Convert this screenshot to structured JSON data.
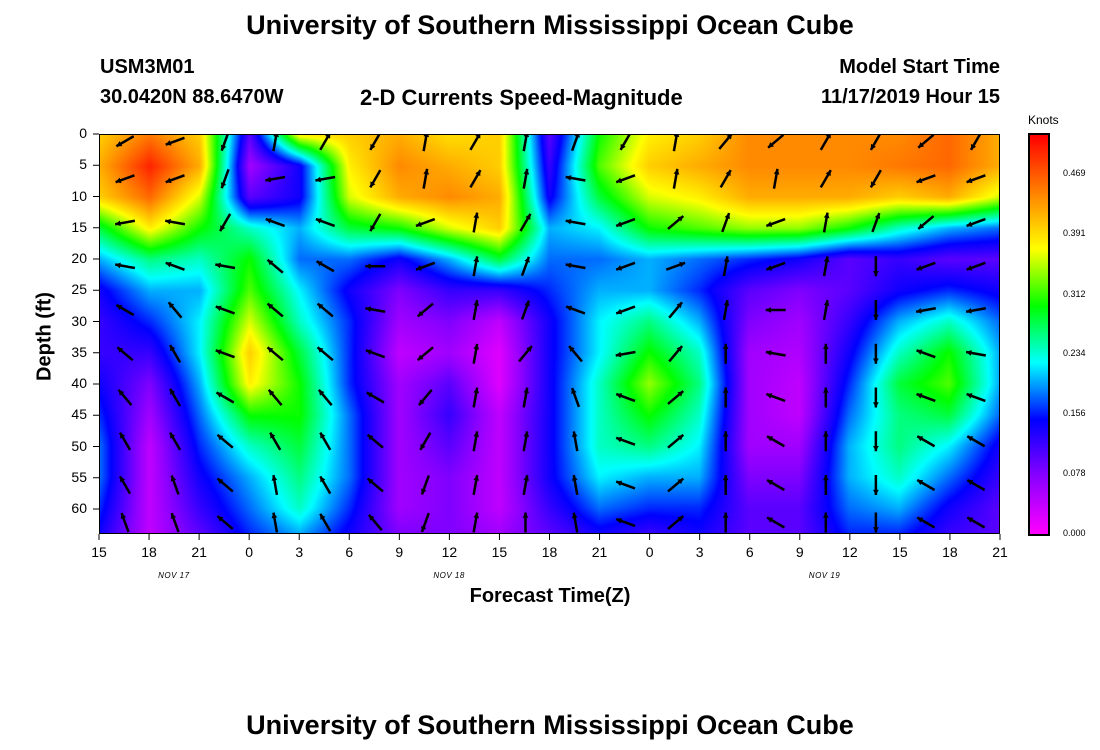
{
  "header": {
    "title_top": "University of Southern Mississippi Ocean Cube",
    "title_bottom": "University of Southern Mississippi Ocean Cube",
    "station": "USM3M01",
    "coords": "30.0420N 88.6470W",
    "plot_title": "2-D Currents Speed-Magnitude",
    "model_start_label": "Model Start Time",
    "model_start_value": "11/17/2019 Hour 15"
  },
  "chart_data": {
    "type": "heatmap",
    "title": "2-D Currents Speed-Magnitude",
    "xlabel": "Forecast Time(Z)",
    "ylabel": "Depth (ft)",
    "x_tick_labels": [
      "15",
      "18",
      "21",
      "0",
      "3",
      "6",
      "9",
      "12",
      "15",
      "18",
      "21",
      "0",
      "3",
      "6",
      "9",
      "12",
      "15",
      "18",
      "21"
    ],
    "x_range_hours": [
      0,
      54
    ],
    "day_labels": [
      {
        "label": "NOV 17",
        "hour": 4.5
      },
      {
        "label": "NOV 18",
        "hour": 21
      },
      {
        "label": "NOV 19",
        "hour": 43.5
      }
    ],
    "y_ticks": [
      0,
      5,
      10,
      15,
      20,
      25,
      30,
      35,
      40,
      45,
      50,
      55,
      60
    ],
    "y_range": [
      0,
      64
    ],
    "colorbar": {
      "unit": "Knots",
      "ticks": [
        "0.469",
        "0.391",
        "0.312",
        "0.234",
        "0.156",
        "0.078",
        "0.000"
      ],
      "tick_values": [
        0.469,
        0.391,
        0.312,
        0.234,
        0.156,
        0.078,
        0.0
      ],
      "range": [
        0,
        0.52
      ],
      "colors": [
        "#ff00ff",
        "#8a00ff",
        "#0000ff",
        "#00ffff",
        "#00ff00",
        "#ffff00",
        "#ff8000",
        "#ff0000"
      ]
    },
    "speed_grid": {
      "x_hours": [
        0,
        3,
        6,
        9,
        12,
        15,
        18,
        21,
        24,
        27,
        30,
        33,
        36,
        39,
        42,
        45,
        48,
        51,
        54
      ],
      "depths": [
        0,
        5,
        10,
        15,
        20,
        25,
        30,
        35,
        40,
        45,
        50,
        55,
        60,
        64
      ],
      "values": [
        [
          0.4,
          0.45,
          0.4,
          0.1,
          0.38,
          0.4,
          0.42,
          0.39,
          0.4,
          0.1,
          0.3,
          0.38,
          0.4,
          0.44,
          0.44,
          0.44,
          0.44,
          0.46,
          0.42
        ],
        [
          0.42,
          0.5,
          0.42,
          0.06,
          0.14,
          0.38,
          0.44,
          0.42,
          0.4,
          0.12,
          0.32,
          0.4,
          0.42,
          0.44,
          0.44,
          0.44,
          0.45,
          0.46,
          0.42
        ],
        [
          0.4,
          0.46,
          0.36,
          0.1,
          0.14,
          0.36,
          0.42,
          0.44,
          0.42,
          0.14,
          0.28,
          0.36,
          0.38,
          0.42,
          0.42,
          0.42,
          0.4,
          0.42,
          0.36
        ],
        [
          0.28,
          0.38,
          0.3,
          0.24,
          0.2,
          0.28,
          0.3,
          0.36,
          0.4,
          0.2,
          0.22,
          0.3,
          0.32,
          0.34,
          0.34,
          0.3,
          0.24,
          0.2,
          0.18
        ],
        [
          0.2,
          0.26,
          0.24,
          0.3,
          0.18,
          0.18,
          0.14,
          0.2,
          0.28,
          0.18,
          0.18,
          0.2,
          0.18,
          0.16,
          0.14,
          0.1,
          0.12,
          0.1,
          0.1
        ],
        [
          0.14,
          0.2,
          0.2,
          0.32,
          0.22,
          0.14,
          0.08,
          0.12,
          0.12,
          0.16,
          0.2,
          0.2,
          0.16,
          0.1,
          0.08,
          0.1,
          0.14,
          0.16,
          0.14
        ],
        [
          0.12,
          0.16,
          0.22,
          0.36,
          0.24,
          0.16,
          0.06,
          0.08,
          0.04,
          0.14,
          0.22,
          0.26,
          0.2,
          0.08,
          0.06,
          0.12,
          0.2,
          0.24,
          0.18
        ],
        [
          0.12,
          0.12,
          0.22,
          0.4,
          0.28,
          0.16,
          0.04,
          0.06,
          0.02,
          0.14,
          0.22,
          0.3,
          0.24,
          0.06,
          0.05,
          0.14,
          0.24,
          0.3,
          0.2
        ],
        [
          0.14,
          0.08,
          0.2,
          0.38,
          0.3,
          0.16,
          0.06,
          0.1,
          0.02,
          0.14,
          0.24,
          0.34,
          0.26,
          0.06,
          0.04,
          0.16,
          0.28,
          0.32,
          0.2
        ],
        [
          0.16,
          0.06,
          0.18,
          0.3,
          0.3,
          0.18,
          0.06,
          0.12,
          0.04,
          0.14,
          0.24,
          0.3,
          0.24,
          0.06,
          0.04,
          0.18,
          0.26,
          0.28,
          0.18
        ],
        [
          0.18,
          0.04,
          0.16,
          0.24,
          0.28,
          0.18,
          0.06,
          0.1,
          0.04,
          0.14,
          0.24,
          0.26,
          0.22,
          0.06,
          0.06,
          0.2,
          0.26,
          0.22,
          0.14
        ],
        [
          0.18,
          0.04,
          0.14,
          0.2,
          0.26,
          0.18,
          0.06,
          0.08,
          0.04,
          0.14,
          0.22,
          0.2,
          0.2,
          0.08,
          0.08,
          0.2,
          0.24,
          0.18,
          0.12
        ],
        [
          0.16,
          0.04,
          0.12,
          0.18,
          0.24,
          0.16,
          0.06,
          0.08,
          0.04,
          0.12,
          0.18,
          0.16,
          0.16,
          0.1,
          0.1,
          0.18,
          0.2,
          0.14,
          0.1
        ],
        [
          0.14,
          0.04,
          0.1,
          0.16,
          0.2,
          0.14,
          0.08,
          0.08,
          0.06,
          0.1,
          0.14,
          0.12,
          0.14,
          0.1,
          0.1,
          0.16,
          0.16,
          0.12,
          0.1
        ]
      ]
    },
    "vectors": {
      "x_hours": [
        1.5,
        4.5,
        7.5,
        10.5,
        13.5,
        16.5,
        19.5,
        22.5,
        25.5,
        28.5,
        31.5,
        34.5,
        37.5,
        40.5,
        43.5,
        46.5,
        49.5,
        52.5
      ],
      "depths": [
        1,
        7,
        14,
        21,
        28,
        35,
        42,
        49,
        56,
        62
      ],
      "directions_deg": [
        [
          210,
          200,
          250,
          80,
          60,
          240,
          80,
          60,
          80,
          70,
          240,
          80,
          50,
          220,
          60,
          240,
          220,
          240
        ],
        [
          200,
          200,
          250,
          190,
          190,
          240,
          80,
          60,
          80,
          170,
          200,
          80,
          60,
          80,
          60,
          240,
          200,
          200
        ],
        [
          190,
          170,
          240,
          160,
          160,
          240,
          200,
          80,
          60,
          170,
          200,
          40,
          70,
          200,
          80,
          70,
          220,
          200
        ],
        [
          170,
          160,
          170,
          140,
          150,
          180,
          200,
          80,
          70,
          170,
          200,
          20,
          80,
          200,
          80,
          270,
          200,
          200
        ],
        [
          150,
          130,
          160,
          140,
          140,
          170,
          220,
          80,
          70,
          160,
          200,
          50,
          80,
          180,
          80,
          270,
          190,
          190
        ],
        [
          140,
          120,
          160,
          140,
          140,
          160,
          220,
          80,
          50,
          130,
          190,
          50,
          90,
          170,
          90,
          270,
          160,
          170
        ],
        [
          130,
          120,
          150,
          130,
          130,
          150,
          230,
          80,
          80,
          110,
          160,
          40,
          90,
          160,
          90,
          270,
          160,
          160
        ],
        [
          120,
          120,
          140,
          120,
          120,
          140,
          240,
          80,
          80,
          100,
          160,
          40,
          90,
          150,
          90,
          270,
          150,
          150
        ],
        [
          120,
          110,
          140,
          100,
          120,
          140,
          250,
          80,
          80,
          100,
          160,
          40,
          90,
          150,
          90,
          270,
          150,
          150
        ],
        [
          110,
          110,
          140,
          100,
          120,
          130,
          250,
          80,
          90,
          100,
          160,
          40,
          90,
          150,
          90,
          270,
          150,
          150
        ]
      ]
    }
  }
}
